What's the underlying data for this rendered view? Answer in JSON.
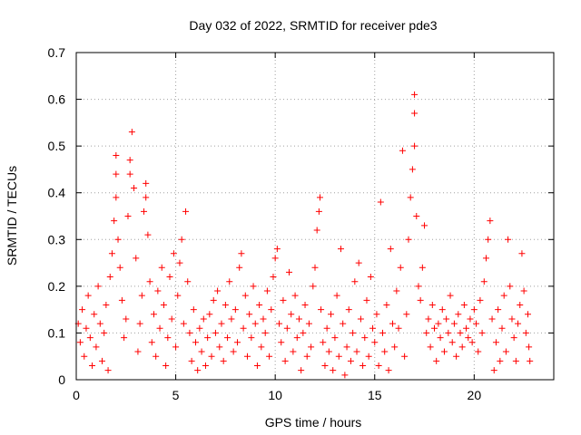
{
  "chart_data": {
    "type": "scatter",
    "title": "Day 032 of 2022, SRMTID for receiver pde3",
    "xlabel": "GPS time / hours",
    "ylabel": "SRMTID / TECUs",
    "xlim": [
      0,
      24
    ],
    "ylim": [
      0,
      0.7
    ],
    "xticks": [
      0,
      5,
      10,
      15,
      20
    ],
    "xtick_labels": [
      "0",
      "5",
      "10",
      "15",
      "20"
    ],
    "yticks": [
      0,
      0.1,
      0.2,
      0.3,
      0.4,
      0.5,
      0.6,
      0.7
    ],
    "ytick_labels": [
      "0",
      "0.1",
      "0.2",
      "0.3",
      "0.4",
      "0.5",
      "0.6",
      "0.7"
    ],
    "grid": true,
    "marker": "+",
    "color": "#ff0000",
    "series": [
      {
        "name": "SRMTID",
        "points": [
          [
            0.1,
            0.12
          ],
          [
            0.2,
            0.08
          ],
          [
            0.3,
            0.15
          ],
          [
            0.4,
            0.05
          ],
          [
            0.5,
            0.11
          ],
          [
            0.6,
            0.18
          ],
          [
            0.7,
            0.09
          ],
          [
            0.8,
            0.03
          ],
          [
            0.9,
            0.14
          ],
          [
            1.0,
            0.07
          ],
          [
            1.1,
            0.2
          ],
          [
            1.2,
            0.12
          ],
          [
            1.3,
            0.04
          ],
          [
            1.4,
            0.1
          ],
          [
            1.5,
            0.16
          ],
          [
            1.6,
            0.02
          ],
          [
            1.7,
            0.22
          ],
          [
            1.8,
            0.27
          ],
          [
            1.9,
            0.34
          ],
          [
            2.0,
            0.39
          ],
          [
            2.0,
            0.44
          ],
          [
            2.0,
            0.48
          ],
          [
            2.1,
            0.3
          ],
          [
            2.2,
            0.24
          ],
          [
            2.3,
            0.17
          ],
          [
            2.4,
            0.09
          ],
          [
            2.5,
            0.13
          ],
          [
            2.6,
            0.35
          ],
          [
            2.7,
            0.44
          ],
          [
            2.7,
            0.47
          ],
          [
            2.8,
            0.53
          ],
          [
            2.9,
            0.41
          ],
          [
            3.0,
            0.26
          ],
          [
            3.1,
            0.06
          ],
          [
            3.2,
            0.12
          ],
          [
            3.3,
            0.18
          ],
          [
            3.4,
            0.36
          ],
          [
            3.5,
            0.39
          ],
          [
            3.5,
            0.42
          ],
          [
            3.6,
            0.31
          ],
          [
            3.7,
            0.21
          ],
          [
            3.8,
            0.08
          ],
          [
            3.9,
            0.14
          ],
          [
            4.0,
            0.05
          ],
          [
            4.1,
            0.19
          ],
          [
            4.2,
            0.11
          ],
          [
            4.3,
            0.24
          ],
          [
            4.4,
            0.16
          ],
          [
            4.5,
            0.03
          ],
          [
            4.6,
            0.09
          ],
          [
            4.7,
            0.22
          ],
          [
            4.8,
            0.13
          ],
          [
            4.9,
            0.27
          ],
          [
            5.0,
            0.07
          ],
          [
            5.1,
            0.18
          ],
          [
            5.2,
            0.25
          ],
          [
            5.3,
            0.3
          ],
          [
            5.4,
            0.12
          ],
          [
            5.5,
            0.36
          ],
          [
            5.6,
            0.21
          ],
          [
            5.7,
            0.1
          ],
          [
            5.8,
            0.04
          ],
          [
            5.9,
            0.15
          ],
          [
            6.0,
            0.08
          ],
          [
            6.1,
            0.02
          ],
          [
            6.2,
            0.11
          ],
          [
            6.3,
            0.06
          ],
          [
            6.4,
            0.13
          ],
          [
            6.5,
            0.03
          ],
          [
            6.6,
            0.09
          ],
          [
            6.7,
            0.14
          ],
          [
            6.8,
            0.05
          ],
          [
            6.9,
            0.17
          ],
          [
            7.0,
            0.1
          ],
          [
            7.1,
            0.19
          ],
          [
            7.2,
            0.07
          ],
          [
            7.3,
            0.12
          ],
          [
            7.4,
            0.04
          ],
          [
            7.5,
            0.16
          ],
          [
            7.6,
            0.09
          ],
          [
            7.7,
            0.21
          ],
          [
            7.8,
            0.13
          ],
          [
            7.9,
            0.06
          ],
          [
            8.0,
            0.15
          ],
          [
            8.1,
            0.08
          ],
          [
            8.2,
            0.24
          ],
          [
            8.3,
            0.27
          ],
          [
            8.4,
            0.11
          ],
          [
            8.5,
            0.18
          ],
          [
            8.6,
            0.05
          ],
          [
            8.7,
            0.14
          ],
          [
            8.8,
            0.09
          ],
          [
            8.9,
            0.2
          ],
          [
            9.0,
            0.12
          ],
          [
            9.1,
            0.03
          ],
          [
            9.2,
            0.16
          ],
          [
            9.3,
            0.07
          ],
          [
            9.4,
            0.13
          ],
          [
            9.5,
            0.1
          ],
          [
            9.6,
            0.19
          ],
          [
            9.7,
            0.05
          ],
          [
            9.8,
            0.15
          ],
          [
            9.9,
            0.22
          ],
          [
            10.0,
            0.26
          ],
          [
            10.1,
            0.28
          ],
          [
            10.2,
            0.12
          ],
          [
            10.3,
            0.08
          ],
          [
            10.4,
            0.17
          ],
          [
            10.5,
            0.04
          ],
          [
            10.6,
            0.11
          ],
          [
            10.7,
            0.23
          ],
          [
            10.8,
            0.14
          ],
          [
            10.9,
            0.06
          ],
          [
            11.0,
            0.18
          ],
          [
            11.1,
            0.09
          ],
          [
            11.2,
            0.13
          ],
          [
            11.3,
            0.02
          ],
          [
            11.4,
            0.1
          ],
          [
            11.5,
            0.16
          ],
          [
            11.6,
            0.05
          ],
          [
            11.7,
            0.12
          ],
          [
            11.8,
            0.07
          ],
          [
            11.9,
            0.2
          ],
          [
            12.0,
            0.24
          ],
          [
            12.1,
            0.32
          ],
          [
            12.2,
            0.36
          ],
          [
            12.25,
            0.39
          ],
          [
            12.3,
            0.15
          ],
          [
            12.4,
            0.08
          ],
          [
            12.5,
            0.03
          ],
          [
            12.6,
            0.11
          ],
          [
            12.7,
            0.06
          ],
          [
            12.8,
            0.14
          ],
          [
            12.9,
            0.02
          ],
          [
            13.0,
            0.09
          ],
          [
            13.1,
            0.18
          ],
          [
            13.2,
            0.05
          ],
          [
            13.3,
            0.28
          ],
          [
            13.4,
            0.12
          ],
          [
            13.5,
            0.01
          ],
          [
            13.6,
            0.07
          ],
          [
            13.7,
            0.15
          ],
          [
            13.8,
            0.04
          ],
          [
            13.9,
            0.1
          ],
          [
            14.0,
            0.21
          ],
          [
            14.1,
            0.06
          ],
          [
            14.2,
            0.25
          ],
          [
            14.3,
            0.13
          ],
          [
            14.4,
            0.03
          ],
          [
            14.5,
            0.09
          ],
          [
            14.6,
            0.17
          ],
          [
            14.7,
            0.05
          ],
          [
            14.8,
            0.22
          ],
          [
            14.9,
            0.11
          ],
          [
            15.0,
            0.08
          ],
          [
            15.1,
            0.14
          ],
          [
            15.2,
            0.03
          ],
          [
            15.3,
            0.38
          ],
          [
            15.4,
            0.1
          ],
          [
            15.5,
            0.06
          ],
          [
            15.6,
            0.16
          ],
          [
            15.7,
            0.02
          ],
          [
            15.8,
            0.28
          ],
          [
            15.9,
            0.12
          ],
          [
            16.0,
            0.07
          ],
          [
            16.1,
            0.19
          ],
          [
            16.2,
            0.11
          ],
          [
            16.3,
            0.24
          ],
          [
            16.4,
            0.49
          ],
          [
            16.5,
            0.05
          ],
          [
            16.6,
            0.14
          ],
          [
            16.7,
            0.3
          ],
          [
            16.8,
            0.39
          ],
          [
            16.9,
            0.45
          ],
          [
            17.0,
            0.5
          ],
          [
            17.0,
            0.57
          ],
          [
            17.0,
            0.61
          ],
          [
            17.1,
            0.35
          ],
          [
            17.2,
            0.2
          ],
          [
            17.3,
            0.17
          ],
          [
            17.4,
            0.24
          ],
          [
            17.5,
            0.33
          ],
          [
            17.6,
            0.1
          ],
          [
            17.7,
            0.13
          ],
          [
            17.8,
            0.07
          ],
          [
            17.9,
            0.16
          ],
          [
            18.0,
            0.11
          ],
          [
            18.1,
            0.04
          ],
          [
            18.2,
            0.12
          ],
          [
            18.3,
            0.09
          ],
          [
            18.4,
            0.15
          ],
          [
            18.5,
            0.06
          ],
          [
            18.6,
            0.13
          ],
          [
            18.7,
            0.1
          ],
          [
            18.8,
            0.18
          ],
          [
            18.9,
            0.08
          ],
          [
            19.0,
            0.12
          ],
          [
            19.1,
            0.05
          ],
          [
            19.2,
            0.14
          ],
          [
            19.3,
            0.1
          ],
          [
            19.4,
            0.07
          ],
          [
            19.5,
            0.16
          ],
          [
            19.6,
            0.11
          ],
          [
            19.7,
            0.09
          ],
          [
            19.8,
            0.13
          ],
          [
            19.9,
            0.08
          ],
          [
            20.0,
            0.15
          ],
          [
            20.1,
            0.12
          ],
          [
            20.2,
            0.06
          ],
          [
            20.3,
            0.17
          ],
          [
            20.4,
            0.1
          ],
          [
            20.5,
            0.21
          ],
          [
            20.6,
            0.26
          ],
          [
            20.7,
            0.3
          ],
          [
            20.8,
            0.34
          ],
          [
            20.9,
            0.13
          ],
          [
            21.0,
            0.02
          ],
          [
            21.1,
            0.08
          ],
          [
            21.2,
            0.15
          ],
          [
            21.3,
            0.04
          ],
          [
            21.4,
            0.11
          ],
          [
            21.5,
            0.18
          ],
          [
            21.6,
            0.06
          ],
          [
            21.7,
            0.3
          ],
          [
            21.8,
            0.2
          ],
          [
            21.9,
            0.13
          ],
          [
            22.0,
            0.09
          ],
          [
            22.1,
            0.04
          ],
          [
            22.2,
            0.12
          ],
          [
            22.3,
            0.16
          ],
          [
            22.4,
            0.27
          ],
          [
            22.5,
            0.19
          ],
          [
            22.6,
            0.1
          ],
          [
            22.7,
            0.14
          ],
          [
            22.75,
            0.07
          ],
          [
            22.8,
            0.04
          ]
        ]
      }
    ]
  }
}
